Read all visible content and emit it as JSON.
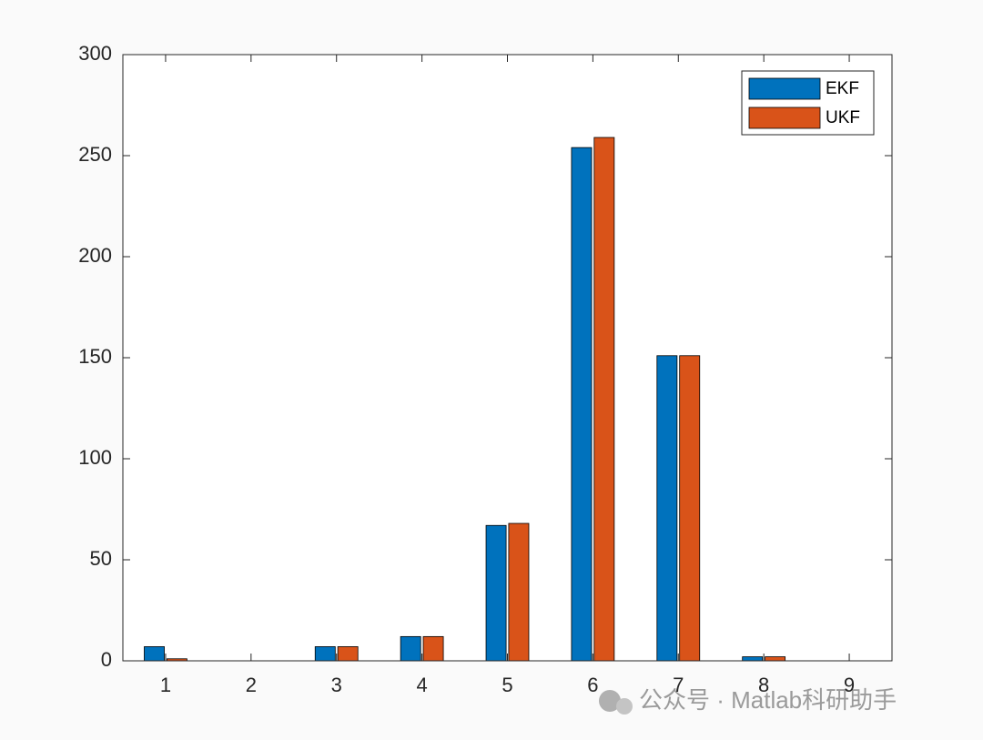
{
  "chart_data": {
    "type": "bar",
    "x": [
      1,
      2,
      3,
      4,
      5,
      6,
      7,
      8,
      9
    ],
    "series": [
      {
        "name": "EKF",
        "color": "#0072BD",
        "values": [
          7,
          0,
          7,
          12,
          67,
          254,
          151,
          2,
          0
        ]
      },
      {
        "name": "UKF",
        "color": "#D95319",
        "values": [
          1,
          0,
          7,
          12,
          68,
          259,
          151,
          2,
          0
        ]
      }
    ],
    "xlim": [
      0.5,
      9.5
    ],
    "xticks": [
      1,
      2,
      3,
      4,
      5,
      6,
      7,
      8,
      9
    ],
    "ylim": [
      0,
      300
    ],
    "yticks": [
      0,
      50,
      100,
      150,
      200,
      250,
      300
    ],
    "legend": "top-right"
  },
  "watermark": "公众号 · Matlab科研助手"
}
